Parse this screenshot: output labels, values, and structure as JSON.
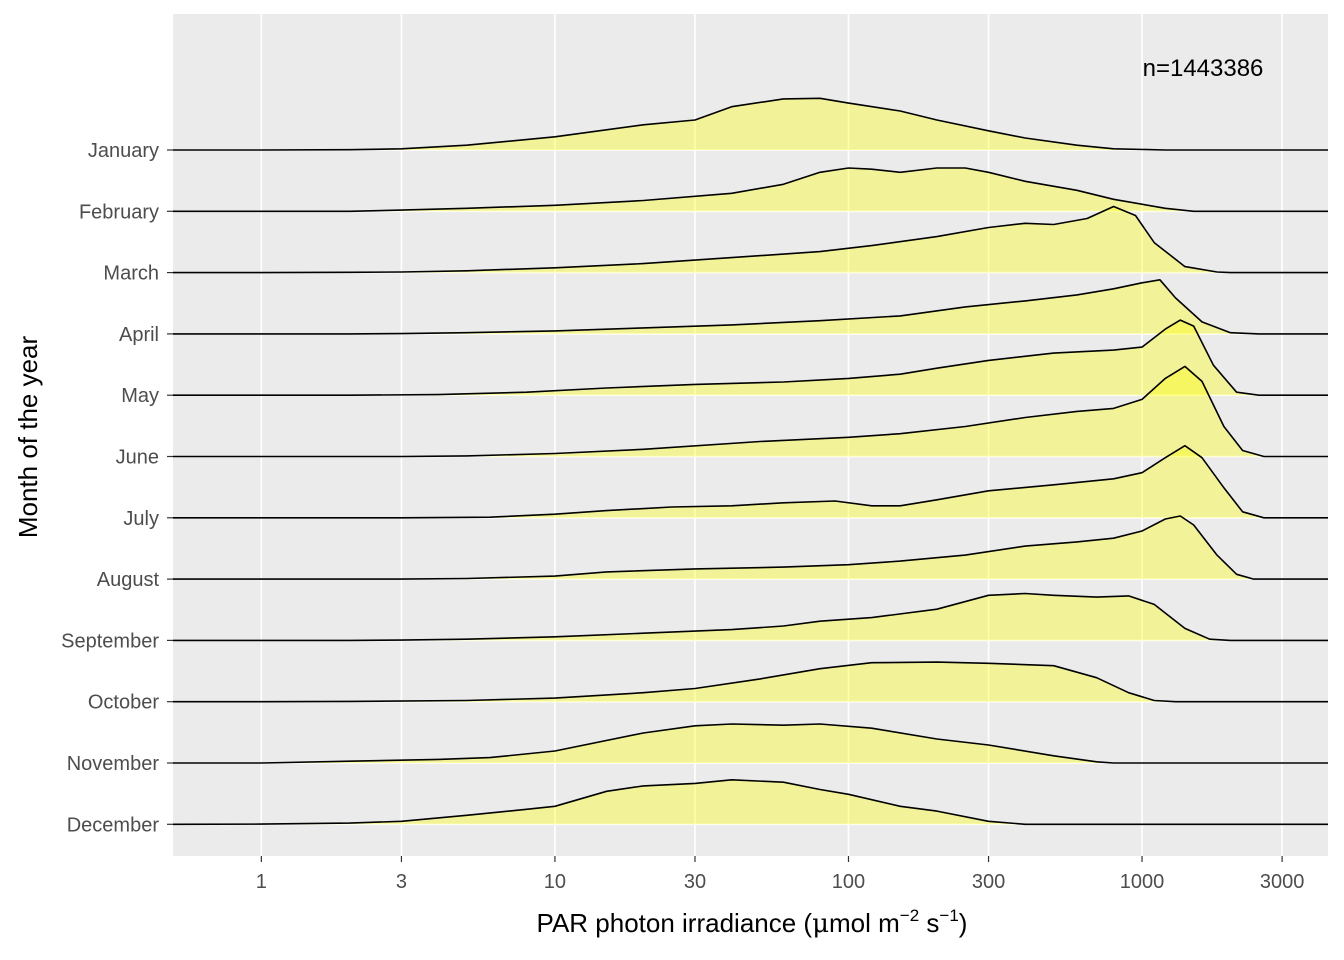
{
  "chart_data": {
    "type": "ridgeline",
    "xlabel": {
      "main": "PAR  photon  irradiance  (",
      "mu": "μ",
      "unit_before": "mol m",
      "exp1": "−2",
      "mid": " s",
      "exp2": "−1",
      "close": ")"
    },
    "ylabel": "Month of the year",
    "annotation": "n=1443386",
    "x_scale": "log10",
    "xlim": [
      0.5,
      4300
    ],
    "x_ticks": [
      {
        "value": 1,
        "label": "1"
      },
      {
        "value": 3,
        "label": "3"
      },
      {
        "value": 10,
        "label": "10"
      },
      {
        "value": 30,
        "label": "30"
      },
      {
        "value": 100,
        "label": "100"
      },
      {
        "value": 300,
        "label": "300"
      },
      {
        "value": 1000,
        "label": "1000"
      },
      {
        "value": 3000,
        "label": "3000"
      }
    ],
    "fill_color": "#ffff00",
    "fill_opacity": 0.35,
    "line_color": "#000000",
    "panel_background": "#ebebeb",
    "grid_color": "#ffffff",
    "grid": true,
    "ridge_scale": 2.25,
    "series": [
      {
        "name": "January",
        "points": [
          [
            0.5,
            0
          ],
          [
            1,
            0
          ],
          [
            2,
            0.005
          ],
          [
            3,
            0.02
          ],
          [
            5,
            0.08
          ],
          [
            10,
            0.22
          ],
          [
            20,
            0.42
          ],
          [
            30,
            0.5
          ],
          [
            40,
            0.72
          ],
          [
            60,
            0.85
          ],
          [
            80,
            0.86
          ],
          [
            100,
            0.78
          ],
          [
            150,
            0.65
          ],
          [
            200,
            0.5
          ],
          [
            300,
            0.32
          ],
          [
            400,
            0.2
          ],
          [
            600,
            0.08
          ],
          [
            800,
            0.02
          ],
          [
            1200,
            0
          ],
          [
            4300,
            0
          ]
        ]
      },
      {
        "name": "February",
        "points": [
          [
            0.5,
            0
          ],
          [
            1,
            0
          ],
          [
            2,
            0
          ],
          [
            3,
            0.02
          ],
          [
            5,
            0.05
          ],
          [
            10,
            0.1
          ],
          [
            20,
            0.18
          ],
          [
            40,
            0.3
          ],
          [
            60,
            0.45
          ],
          [
            80,
            0.65
          ],
          [
            100,
            0.72
          ],
          [
            120,
            0.7
          ],
          [
            150,
            0.65
          ],
          [
            200,
            0.72
          ],
          [
            250,
            0.72
          ],
          [
            300,
            0.65
          ],
          [
            400,
            0.5
          ],
          [
            600,
            0.35
          ],
          [
            800,
            0.2
          ],
          [
            1200,
            0.05
          ],
          [
            1500,
            0
          ],
          [
            4300,
            0
          ]
        ]
      },
      {
        "name": "March",
        "points": [
          [
            0.5,
            0
          ],
          [
            1,
            0
          ],
          [
            2,
            0.005
          ],
          [
            3,
            0.01
          ],
          [
            5,
            0.03
          ],
          [
            10,
            0.08
          ],
          [
            20,
            0.15
          ],
          [
            40,
            0.25
          ],
          [
            80,
            0.35
          ],
          [
            120,
            0.45
          ],
          [
            200,
            0.6
          ],
          [
            300,
            0.75
          ],
          [
            400,
            0.82
          ],
          [
            500,
            0.8
          ],
          [
            650,
            0.9
          ],
          [
            800,
            1.1
          ],
          [
            950,
            0.95
          ],
          [
            1100,
            0.5
          ],
          [
            1400,
            0.1
          ],
          [
            1800,
            0.01
          ],
          [
            2000,
            0
          ],
          [
            4300,
            0
          ]
        ]
      },
      {
        "name": "April",
        "points": [
          [
            0.5,
            0
          ],
          [
            1,
            0
          ],
          [
            2,
            0
          ],
          [
            3,
            0.005
          ],
          [
            5,
            0.02
          ],
          [
            10,
            0.05
          ],
          [
            20,
            0.1
          ],
          [
            40,
            0.15
          ],
          [
            80,
            0.22
          ],
          [
            150,
            0.3
          ],
          [
            250,
            0.45
          ],
          [
            400,
            0.55
          ],
          [
            600,
            0.65
          ],
          [
            800,
            0.75
          ],
          [
            1000,
            0.85
          ],
          [
            1150,
            0.9
          ],
          [
            1300,
            0.6
          ],
          [
            1600,
            0.2
          ],
          [
            2000,
            0.02
          ],
          [
            2500,
            0
          ],
          [
            4300,
            0
          ]
        ]
      },
      {
        "name": "May",
        "points": [
          [
            0.5,
            0
          ],
          [
            1,
            0
          ],
          [
            2,
            0
          ],
          [
            4,
            0.01
          ],
          [
            8,
            0.05
          ],
          [
            15,
            0.12
          ],
          [
            30,
            0.18
          ],
          [
            60,
            0.22
          ],
          [
            100,
            0.28
          ],
          [
            150,
            0.35
          ],
          [
            200,
            0.45
          ],
          [
            300,
            0.58
          ],
          [
            500,
            0.7
          ],
          [
            800,
            0.75
          ],
          [
            1000,
            0.8
          ],
          [
            1200,
            1.1
          ],
          [
            1350,
            1.25
          ],
          [
            1500,
            1.15
          ],
          [
            1750,
            0.5
          ],
          [
            2100,
            0.05
          ],
          [
            2500,
            0
          ],
          [
            4300,
            0
          ]
        ]
      },
      {
        "name": "June",
        "points": [
          [
            0.5,
            0
          ],
          [
            1,
            0
          ],
          [
            3,
            0
          ],
          [
            5,
            0.01
          ],
          [
            10,
            0.05
          ],
          [
            20,
            0.12
          ],
          [
            50,
            0.25
          ],
          [
            100,
            0.32
          ],
          [
            150,
            0.38
          ],
          [
            250,
            0.5
          ],
          [
            400,
            0.65
          ],
          [
            600,
            0.75
          ],
          [
            800,
            0.8
          ],
          [
            1000,
            0.95
          ],
          [
            1200,
            1.3
          ],
          [
            1400,
            1.5
          ],
          [
            1600,
            1.25
          ],
          [
            1900,
            0.5
          ],
          [
            2200,
            0.1
          ],
          [
            2600,
            0
          ],
          [
            4300,
            0
          ]
        ]
      },
      {
        "name": "July",
        "points": [
          [
            0.5,
            0
          ],
          [
            1,
            0
          ],
          [
            3,
            0
          ],
          [
            6,
            0.01
          ],
          [
            10,
            0.06
          ],
          [
            15,
            0.12
          ],
          [
            25,
            0.18
          ],
          [
            40,
            0.2
          ],
          [
            60,
            0.25
          ],
          [
            90,
            0.28
          ],
          [
            120,
            0.2
          ],
          [
            150,
            0.2
          ],
          [
            200,
            0.3
          ],
          [
            300,
            0.45
          ],
          [
            500,
            0.55
          ],
          [
            800,
            0.65
          ],
          [
            1000,
            0.75
          ],
          [
            1200,
            1.0
          ],
          [
            1400,
            1.2
          ],
          [
            1600,
            1.0
          ],
          [
            1900,
            0.5
          ],
          [
            2200,
            0.1
          ],
          [
            2600,
            0
          ],
          [
            4300,
            0
          ]
        ]
      },
      {
        "name": "August",
        "points": [
          [
            0.5,
            0
          ],
          [
            1,
            0
          ],
          [
            3,
            0
          ],
          [
            5,
            0.01
          ],
          [
            10,
            0.05
          ],
          [
            15,
            0.12
          ],
          [
            30,
            0.17
          ],
          [
            60,
            0.2
          ],
          [
            100,
            0.24
          ],
          [
            150,
            0.3
          ],
          [
            250,
            0.4
          ],
          [
            400,
            0.55
          ],
          [
            600,
            0.62
          ],
          [
            800,
            0.68
          ],
          [
            1000,
            0.8
          ],
          [
            1200,
            1.0
          ],
          [
            1350,
            1.05
          ],
          [
            1500,
            0.9
          ],
          [
            1800,
            0.4
          ],
          [
            2100,
            0.08
          ],
          [
            2400,
            0
          ],
          [
            4300,
            0
          ]
        ]
      },
      {
        "name": "September",
        "points": [
          [
            0.5,
            0
          ],
          [
            1,
            0
          ],
          [
            2,
            0
          ],
          [
            3,
            0.005
          ],
          [
            5,
            0.02
          ],
          [
            10,
            0.06
          ],
          [
            20,
            0.12
          ],
          [
            40,
            0.18
          ],
          [
            60,
            0.24
          ],
          [
            80,
            0.32
          ],
          [
            120,
            0.38
          ],
          [
            200,
            0.52
          ],
          [
            300,
            0.75
          ],
          [
            400,
            0.78
          ],
          [
            500,
            0.75
          ],
          [
            700,
            0.72
          ],
          [
            900,
            0.74
          ],
          [
            1100,
            0.6
          ],
          [
            1400,
            0.2
          ],
          [
            1700,
            0.02
          ],
          [
            2000,
            0
          ],
          [
            4300,
            0
          ]
        ]
      },
      {
        "name": "October",
        "points": [
          [
            0.5,
            0
          ],
          [
            1,
            0
          ],
          [
            2,
            0.005
          ],
          [
            5,
            0.02
          ],
          [
            10,
            0.06
          ],
          [
            20,
            0.15
          ],
          [
            30,
            0.22
          ],
          [
            50,
            0.38
          ],
          [
            80,
            0.55
          ],
          [
            120,
            0.65
          ],
          [
            200,
            0.66
          ],
          [
            300,
            0.64
          ],
          [
            500,
            0.6
          ],
          [
            700,
            0.4
          ],
          [
            900,
            0.15
          ],
          [
            1100,
            0.02
          ],
          [
            1300,
            0
          ],
          [
            4300,
            0
          ]
        ]
      },
      {
        "name": "November",
        "points": [
          [
            0.5,
            0
          ],
          [
            1,
            0
          ],
          [
            2,
            0.03
          ],
          [
            4,
            0.06
          ],
          [
            6,
            0.09
          ],
          [
            10,
            0.2
          ],
          [
            20,
            0.5
          ],
          [
            30,
            0.62
          ],
          [
            40,
            0.65
          ],
          [
            60,
            0.63
          ],
          [
            80,
            0.65
          ],
          [
            120,
            0.58
          ],
          [
            200,
            0.4
          ],
          [
            300,
            0.3
          ],
          [
            500,
            0.12
          ],
          [
            700,
            0.02
          ],
          [
            800,
            0
          ],
          [
            4300,
            0
          ]
        ]
      },
      {
        "name": "December",
        "points": [
          [
            0.5,
            0
          ],
          [
            1,
            0.003
          ],
          [
            2,
            0.02
          ],
          [
            3,
            0.05
          ],
          [
            5,
            0.15
          ],
          [
            8,
            0.25
          ],
          [
            10,
            0.3
          ],
          [
            15,
            0.55
          ],
          [
            20,
            0.64
          ],
          [
            30,
            0.68
          ],
          [
            40,
            0.74
          ],
          [
            60,
            0.7
          ],
          [
            80,
            0.58
          ],
          [
            100,
            0.5
          ],
          [
            150,
            0.3
          ],
          [
            200,
            0.22
          ],
          [
            300,
            0.05
          ],
          [
            400,
            0
          ],
          [
            4300,
            0
          ]
        ]
      }
    ]
  }
}
